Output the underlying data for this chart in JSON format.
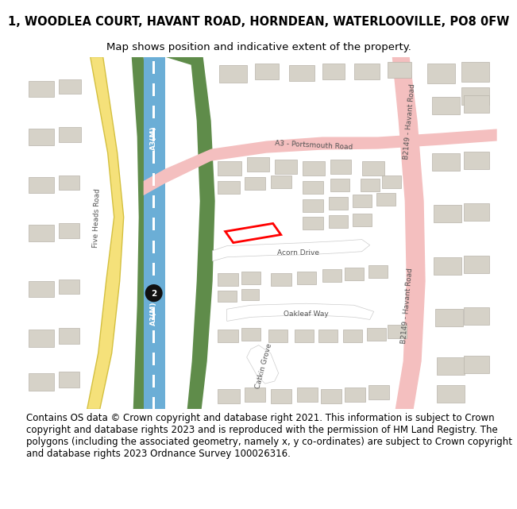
{
  "title": "1, WOODLEA COURT, HAVANT ROAD, HORNDEAN, WATERLOOVILLE, PO8 0FW",
  "subtitle": "Map shows position and indicative extent of the property.",
  "copyright_text": "Contains OS data © Crown copyright and database right 2021. This information is subject to Crown copyright and database rights 2023 and is reproduced with the permission of HM Land Registry. The polygons (including the associated geometry, namely x, y co-ordinates) are subject to Crown copyright and database rights 2023 Ordnance Survey 100026316.",
  "bg_color": "#f0ece3",
  "road_motorway_color": "#6baed6",
  "road_major_color": "#f4bfbf",
  "road_minor_color": "#ffffff",
  "green_color": "#5f8c4a",
  "building_color": "#d6d2c8",
  "building_edge": "#b8b4aa",
  "plot_color": "#ff0000",
  "yellow_road": "#f5e17a",
  "yellow_road_edge": "#d4c040",
  "title_fontsize": 10.5,
  "subtitle_fontsize": 9.5,
  "copyright_fontsize": 8.5,
  "map_text_color": "#555555"
}
